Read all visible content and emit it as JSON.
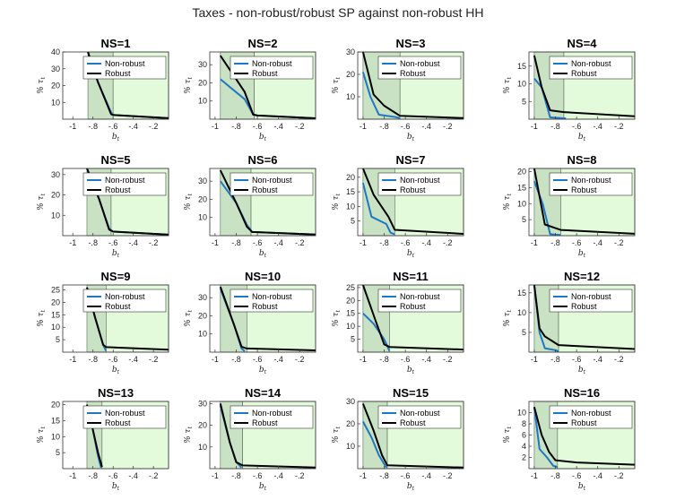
{
  "figure_title": "Taxes - non-robust/robust SP against non-robust HH",
  "colors": {
    "non_robust": "#1f77c4",
    "robust": "#000000",
    "region_dark": "#c9e2c3",
    "region_light": "#e3fbdb"
  },
  "chart_data": [
    {
      "type": "line",
      "title": "NS=1",
      "xlabel": "b_t",
      "ylabel": "% τ_t",
      "xlim": [
        -1.1,
        -0.05
      ],
      "ylim": [
        0,
        40
      ],
      "xticks": [
        -1,
        -0.8,
        -0.6,
        -0.4,
        -0.2
      ],
      "yticks": [
        10,
        20,
        30,
        40
      ],
      "xlimit": -0.85,
      "xshade": -0.6,
      "legend": [
        "Non-robust",
        "Robust"
      ],
      "series": [
        {
          "name": "Non-robust",
          "x": [
            -0.85,
            -0.75,
            -0.62,
            -0.6,
            -0.05
          ],
          "y": [
            40,
            22,
            4,
            2.5,
            0.6
          ]
        },
        {
          "name": "Robust",
          "x": [
            -0.85,
            -0.75,
            -0.62,
            -0.6,
            -0.05
          ],
          "y": [
            40,
            22,
            3,
            2.5,
            0.6
          ]
        }
      ]
    },
    {
      "type": "line",
      "title": "NS=2",
      "xlabel": "b_t",
      "ylabel": "% τ_t",
      "xlim": [
        -1.05,
        -0.05
      ],
      "ylim": [
        0,
        37
      ],
      "xticks": [
        -1,
        -0.8,
        -0.6,
        -0.4,
        -0.2
      ],
      "yticks": [
        10,
        20,
        30
      ],
      "xlimit": -0.95,
      "xshade": -0.63,
      "legend": [
        "Non-robust",
        "Robust"
      ],
      "series": [
        {
          "name": "Non-robust",
          "x": [
            -0.95,
            -0.72,
            -0.64,
            -0.6,
            -0.05
          ],
          "y": [
            22,
            11,
            2.5,
            2,
            0.5
          ]
        },
        {
          "name": "Robust",
          "x": [
            -0.95,
            -0.72,
            -0.64,
            -0.6,
            -0.05
          ],
          "y": [
            35,
            15,
            2.5,
            2,
            0.5
          ]
        }
      ]
    },
    {
      "type": "line",
      "title": "NS=3",
      "xlabel": "b_t",
      "ylabel": "% τ_t",
      "xlim": [
        -1.05,
        -0.05
      ],
      "ylim": [
        0,
        30
      ],
      "xticks": [
        -1,
        -0.8,
        -0.6,
        -0.4,
        -0.2
      ],
      "yticks": [
        10,
        20,
        30
      ],
      "xlimit": -1,
      "xshade": -0.65,
      "legend": [
        "Non-robust",
        "Robust"
      ],
      "series": [
        {
          "name": "Non-robust",
          "x": [
            -1,
            -0.93,
            -0.85,
            -0.7,
            -0.65
          ],
          "y": [
            21,
            10,
            2,
            1,
            0.5
          ]
        },
        {
          "name": "Robust",
          "x": [
            -1,
            -0.9,
            -0.8,
            -0.65,
            -0.05
          ],
          "y": [
            30,
            11,
            6,
            1.5,
            0.5
          ]
        }
      ]
    },
    {
      "type": "line",
      "title": "NS=4",
      "xlabel": "b_t",
      "ylabel": "% τ_t",
      "xlim": [
        -1.05,
        -0.05
      ],
      "ylim": [
        0,
        19
      ],
      "xticks": [
        -1,
        -0.8,
        -0.6,
        -0.4,
        -0.2
      ],
      "yticks": [
        5,
        10,
        15
      ],
      "xlimit": -1,
      "xshade": -0.72,
      "legend": [
        "Non-robust",
        "Robust"
      ],
      "series": [
        {
          "name": "Non-robust",
          "x": [
            -1,
            -0.93,
            -0.85,
            -0.75,
            -0.7
          ],
          "y": [
            11.5,
            9,
            0.5,
            0.3,
            0.2
          ]
        },
        {
          "name": "Robust",
          "x": [
            -1,
            -0.93,
            -0.85,
            -0.72,
            -0.05
          ],
          "y": [
            18,
            9,
            2.5,
            2,
            0.8
          ]
        }
      ]
    },
    {
      "type": "line",
      "title": "NS=5",
      "xlabel": "b_t",
      "ylabel": "% τ_t",
      "xlim": [
        -1.1,
        -0.05
      ],
      "ylim": [
        0,
        33
      ],
      "xticks": [
        -1,
        -0.8,
        -0.6,
        -0.4,
        -0.2
      ],
      "yticks": [
        10,
        20,
        30
      ],
      "xlimit": -0.86,
      "xshade": -0.62,
      "legend": [
        "Non-robust",
        "Robust"
      ],
      "series": [
        {
          "name": "Non-robust",
          "x": [
            -0.86,
            -0.74,
            -0.64,
            -0.6,
            -0.05
          ],
          "y": [
            33,
            18,
            3.5,
            2,
            0.5
          ]
        },
        {
          "name": "Robust",
          "x": [
            -0.86,
            -0.74,
            -0.64,
            -0.6,
            -0.05
          ],
          "y": [
            33,
            18,
            3,
            2,
            0.5
          ]
        }
      ]
    },
    {
      "type": "line",
      "title": "NS=6",
      "xlabel": "b_t",
      "ylabel": "% τ_t",
      "xlim": [
        -1.05,
        -0.05
      ],
      "ylim": [
        0,
        37
      ],
      "xticks": [
        -1,
        -0.8,
        -0.6,
        -0.4,
        -0.2
      ],
      "yticks": [
        10,
        20,
        30
      ],
      "xlimit": -0.95,
      "xshade": -0.66,
      "legend": [
        "Non-robust",
        "Robust"
      ],
      "series": [
        {
          "name": "Non-robust",
          "x": [
            -0.95,
            -0.8,
            -0.7,
            -0.65,
            -0.05
          ],
          "y": [
            30,
            18,
            6,
            2,
            0.6
          ]
        },
        {
          "name": "Robust",
          "x": [
            -0.95,
            -0.8,
            -0.7,
            -0.65,
            -0.05
          ],
          "y": [
            36,
            18,
            5,
            2,
            0.6
          ]
        }
      ]
    },
    {
      "type": "line",
      "title": "NS=7",
      "xlabel": "b_t",
      "ylabel": "% τ_t",
      "xlim": [
        -1.05,
        -0.05
      ],
      "ylim": [
        0,
        23
      ],
      "xticks": [
        -1,
        -0.8,
        -0.6,
        -0.4,
        -0.2
      ],
      "yticks": [
        5,
        10,
        15,
        20
      ],
      "xlimit": -1,
      "xshade": -0.7,
      "legend": [
        "Non-robust",
        "Robust"
      ],
      "series": [
        {
          "name": "Non-robust",
          "x": [
            -1,
            -0.92,
            -0.78,
            -0.74,
            -0.7
          ],
          "y": [
            18,
            6.5,
            4,
            1,
            0.5
          ]
        },
        {
          "name": "Robust",
          "x": [
            -1,
            -0.9,
            -0.76,
            -0.7,
            -0.05
          ],
          "y": [
            23,
            14,
            6.5,
            2,
            0.6
          ]
        }
      ]
    },
    {
      "type": "line",
      "title": "NS=8",
      "xlabel": "b_t",
      "ylabel": "% τ_t",
      "xlim": [
        -1.05,
        -0.05
      ],
      "ylim": [
        0,
        21
      ],
      "xticks": [
        -1,
        -0.8,
        -0.6,
        -0.4,
        -0.2
      ],
      "yticks": [
        5,
        10,
        15,
        20
      ],
      "xlimit": -1,
      "xshade": -0.75,
      "legend": [
        "Non-robust",
        "Robust"
      ],
      "series": [
        {
          "name": "Non-robust",
          "x": [
            -1,
            -0.92,
            -0.85,
            -0.8,
            -0.75
          ],
          "y": [
            17,
            10,
            0.5,
            0.3,
            0.2
          ]
        },
        {
          "name": "Robust",
          "x": [
            -1,
            -0.9,
            -0.75,
            -0.05
          ],
          "y": [
            21,
            3.5,
            1.8,
            0.6
          ]
        }
      ]
    },
    {
      "type": "line",
      "title": "NS=9",
      "xlabel": "b_t",
      "ylabel": "% τ_t",
      "xlim": [
        -1.1,
        -0.05
      ],
      "ylim": [
        0,
        27
      ],
      "xticks": [
        -1,
        -0.8,
        -0.6,
        -0.4,
        -0.2
      ],
      "yticks": [
        5,
        10,
        15,
        20,
        25
      ],
      "xlimit": -0.86,
      "xshade": -0.67,
      "legend": [
        "Non-robust",
        "Robust"
      ],
      "series": [
        {
          "name": "Non-robust",
          "x": [
            -0.86,
            -0.78,
            -0.7,
            -0.67
          ],
          "y": [
            26,
            14,
            3,
            0.5
          ]
        },
        {
          "name": "Robust",
          "x": [
            -0.86,
            -0.78,
            -0.7,
            -0.67,
            -0.05
          ],
          "y": [
            26,
            14,
            3,
            2,
            1
          ]
        }
      ]
    },
    {
      "type": "line",
      "title": "NS=10",
      "xlabel": "b_t",
      "ylabel": "% τ_t",
      "xlim": [
        -1.05,
        -0.05
      ],
      "ylim": [
        0,
        37
      ],
      "xticks": [
        -1,
        -0.8,
        -0.6,
        -0.4,
        -0.2
      ],
      "yticks": [
        10,
        20,
        30
      ],
      "xlimit": -0.95,
      "xshade": -0.7,
      "legend": [
        "Non-robust",
        "Robust"
      ],
      "series": [
        {
          "name": "Non-robust",
          "x": [
            -0.95,
            -0.82,
            -0.75,
            -0.72
          ],
          "y": [
            35,
            15,
            2,
            0.5
          ]
        },
        {
          "name": "Robust",
          "x": [
            -0.95,
            -0.82,
            -0.75,
            -0.7,
            -0.05
          ],
          "y": [
            36,
            15,
            3,
            2,
            1
          ]
        }
      ]
    },
    {
      "type": "line",
      "title": "NS=11",
      "xlabel": "b_t",
      "ylabel": "% τ_t",
      "xlim": [
        -1.05,
        -0.05
      ],
      "ylim": [
        0,
        26
      ],
      "xticks": [
        -1,
        -0.8,
        -0.6,
        -0.4,
        -0.2
      ],
      "yticks": [
        5,
        10,
        15,
        20,
        25
      ],
      "xlimit": -1,
      "xshade": -0.75,
      "legend": [
        "Non-robust",
        "Robust"
      ],
      "series": [
        {
          "name": "Non-robust",
          "x": [
            -1,
            -0.9,
            -0.8,
            -0.75
          ],
          "y": [
            15,
            11,
            5,
            0.5
          ]
        },
        {
          "name": "Robust",
          "x": [
            -1,
            -0.88,
            -0.8,
            -0.75,
            -0.05
          ],
          "y": [
            26,
            12,
            3,
            2,
            1
          ]
        }
      ]
    },
    {
      "type": "line",
      "title": "NS=12",
      "xlabel": "b_t",
      "ylabel": "% τ_t",
      "xlim": [
        -1.05,
        -0.05
      ],
      "ylim": [
        0,
        17
      ],
      "xticks": [
        -1,
        -0.8,
        -0.6,
        -0.4,
        -0.2
      ],
      "yticks": [
        5,
        10,
        15
      ],
      "xlimit": -1,
      "xshade": -0.77,
      "legend": [
        "Non-robust",
        "Robust"
      ],
      "series": [
        {
          "name": "Non-robust",
          "x": [
            -1,
            -0.95,
            -0.9,
            -0.8,
            -0.77
          ],
          "y": [
            17,
            5,
            1,
            0.5,
            0.2
          ]
        },
        {
          "name": "Robust",
          "x": [
            -1,
            -0.95,
            -0.9,
            -0.77,
            -0.05
          ],
          "y": [
            17,
            6,
            4,
            1.8,
            0.8
          ]
        }
      ]
    },
    {
      "type": "line",
      "title": "NS=13",
      "xlabel": "b_t",
      "ylabel": "% τ_t",
      "xlim": [
        -1.1,
        -0.05
      ],
      "ylim": [
        0,
        21
      ],
      "xticks": [
        -1,
        -0.8,
        -0.6,
        -0.4,
        -0.2
      ],
      "yticks": [
        5,
        10,
        15,
        20
      ],
      "xlimit": -0.86,
      "xshade": -0.71,
      "legend": [
        "Non-robust",
        "Robust"
      ],
      "series": [
        {
          "name": "Non-robust",
          "x": [
            -0.86,
            -0.8,
            -0.75,
            -0.72
          ],
          "y": [
            20,
            12,
            4,
            0.3
          ]
        },
        {
          "name": "Robust",
          "x": [
            -0.86,
            -0.8,
            -0.75,
            -0.71
          ],
          "y": [
            20,
            12,
            5,
            0.5
          ]
        }
      ]
    },
    {
      "type": "line",
      "title": "NS=14",
      "xlabel": "b_t",
      "ylabel": "% τ_t",
      "xlim": [
        -1.05,
        -0.05
      ],
      "ylim": [
        0,
        31
      ],
      "xticks": [
        -1,
        -0.8,
        -0.6,
        -0.4,
        -0.2
      ],
      "yticks": [
        10,
        20,
        30
      ],
      "xlimit": -0.95,
      "xshade": -0.74,
      "legend": [
        "Non-robust",
        "Robust"
      ],
      "series": [
        {
          "name": "Non-robust",
          "x": [
            -0.95,
            -0.86,
            -0.8,
            -0.75
          ],
          "y": [
            29,
            12,
            3,
            0.5
          ]
        },
        {
          "name": "Robust",
          "x": [
            -0.95,
            -0.86,
            -0.8,
            -0.74,
            -0.05
          ],
          "y": [
            30,
            12,
            3,
            1.5,
            0.5
          ]
        }
      ]
    },
    {
      "type": "line",
      "title": "NS=15",
      "xlabel": "b_t",
      "ylabel": "% τ_t",
      "xlim": [
        -1.05,
        -0.05
      ],
      "ylim": [
        0,
        30
      ],
      "xticks": [
        -1,
        -0.8,
        -0.6,
        -0.4,
        -0.2
      ],
      "yticks": [
        10,
        20,
        30
      ],
      "xlimit": -1,
      "xshade": -0.77,
      "legend": [
        "Non-robust",
        "Robust"
      ],
      "series": [
        {
          "name": "Non-robust",
          "x": [
            -1,
            -0.92,
            -0.85,
            -0.78
          ],
          "y": [
            21,
            14,
            6,
            0.5
          ]
        },
        {
          "name": "Robust",
          "x": [
            -1,
            -0.9,
            -0.82,
            -0.77,
            -0.05
          ],
          "y": [
            29,
            17,
            6,
            1.5,
            0.5
          ]
        }
      ]
    },
    {
      "type": "line",
      "title": "NS=16",
      "xlabel": "b_t",
      "ylabel": "% τ_t",
      "xlim": [
        -1.05,
        -0.05
      ],
      "ylim": [
        0,
        12
      ],
      "xticks": [
        -1,
        -0.8,
        -0.6,
        -0.4,
        -0.2
      ],
      "yticks": [
        2,
        4,
        6,
        8,
        10
      ],
      "xlimit": -1,
      "xshade": -0.78,
      "legend": [
        "Non-robust",
        "Robust"
      ],
      "series": [
        {
          "name": "Non-robust",
          "x": [
            -1,
            -0.95,
            -0.88,
            -0.82,
            -0.78
          ],
          "y": [
            11,
            3.5,
            2,
            0.5,
            0.3
          ]
        },
        {
          "name": "Robust",
          "x": [
            -1,
            -0.93,
            -0.86,
            -0.8,
            -0.6,
            -0.05
          ],
          "y": [
            11,
            6,
            3,
            1.5,
            1.1,
            0.7
          ]
        }
      ]
    }
  ]
}
